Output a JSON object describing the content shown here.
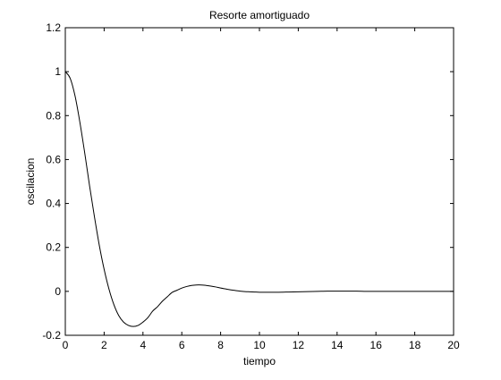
{
  "chart_data": {
    "type": "line",
    "title": "Resorte amortiguado",
    "xlabel": "tiempo",
    "ylabel": "oscilacion",
    "xlim": [
      0,
      20
    ],
    "ylim": [
      -0.2,
      1.2
    ],
    "xticks": [
      0,
      2,
      4,
      6,
      8,
      10,
      12,
      14,
      16,
      18,
      20
    ],
    "yticks": [
      -0.2,
      0,
      0.2,
      0.4,
      0.6,
      0.8,
      1,
      1.2
    ],
    "xtick_labels": [
      "0",
      "2",
      "4",
      "6",
      "8",
      "10",
      "12",
      "14",
      "16",
      "18",
      "20"
    ],
    "ytick_labels": [
      "-0.2",
      "0",
      "0.2",
      "0.4",
      "0.6",
      "0.8",
      "1",
      "1.2"
    ],
    "grid": false,
    "line_color": "#000000",
    "series": [
      {
        "x": [
          0,
          0.25,
          0.5,
          0.75,
          1,
          1.25,
          1.5,
          1.75,
          2,
          2.25,
          2.5,
          2.75,
          3,
          3.25,
          3.5,
          3.75,
          4,
          4.25,
          4.5,
          4.75,
          5,
          5.25,
          5.5,
          5.75,
          6,
          6.25,
          6.5,
          6.75,
          7,
          7.25,
          7.5,
          7.75,
          8,
          8.25,
          8.5,
          8.75,
          9,
          9.25,
          9.5,
          9.75,
          10,
          10.5,
          11,
          11.5,
          12,
          12.5,
          13,
          13.5,
          14,
          14.5,
          15,
          15.5,
          16,
          16.5,
          17,
          17.5,
          18,
          18.5,
          19,
          19.5,
          20
        ],
        "values": [
          1,
          0.97,
          0.89,
          0.77,
          0.63,
          0.48,
          0.34,
          0.21,
          0.1,
          0.01,
          -0.06,
          -0.11,
          -0.14,
          -0.155,
          -0.16,
          -0.155,
          -0.14,
          -0.12,
          -0.09,
          -0.07,
          -0.045,
          -0.025,
          -0.005,
          0.005,
          0.015,
          0.022,
          0.027,
          0.029,
          0.029,
          0.027,
          0.024,
          0.02,
          0.015,
          0.011,
          0.007,
          0.004,
          0.001,
          -0.001,
          -0.002,
          -0.003,
          -0.004,
          -0.004,
          -0.004,
          -0.003,
          -0.002,
          -0.001,
          0,
          0.001,
          0.001,
          0.001,
          0.001,
          0,
          0,
          0,
          0,
          0,
          0,
          0,
          0,
          0,
          0
        ]
      }
    ]
  }
}
